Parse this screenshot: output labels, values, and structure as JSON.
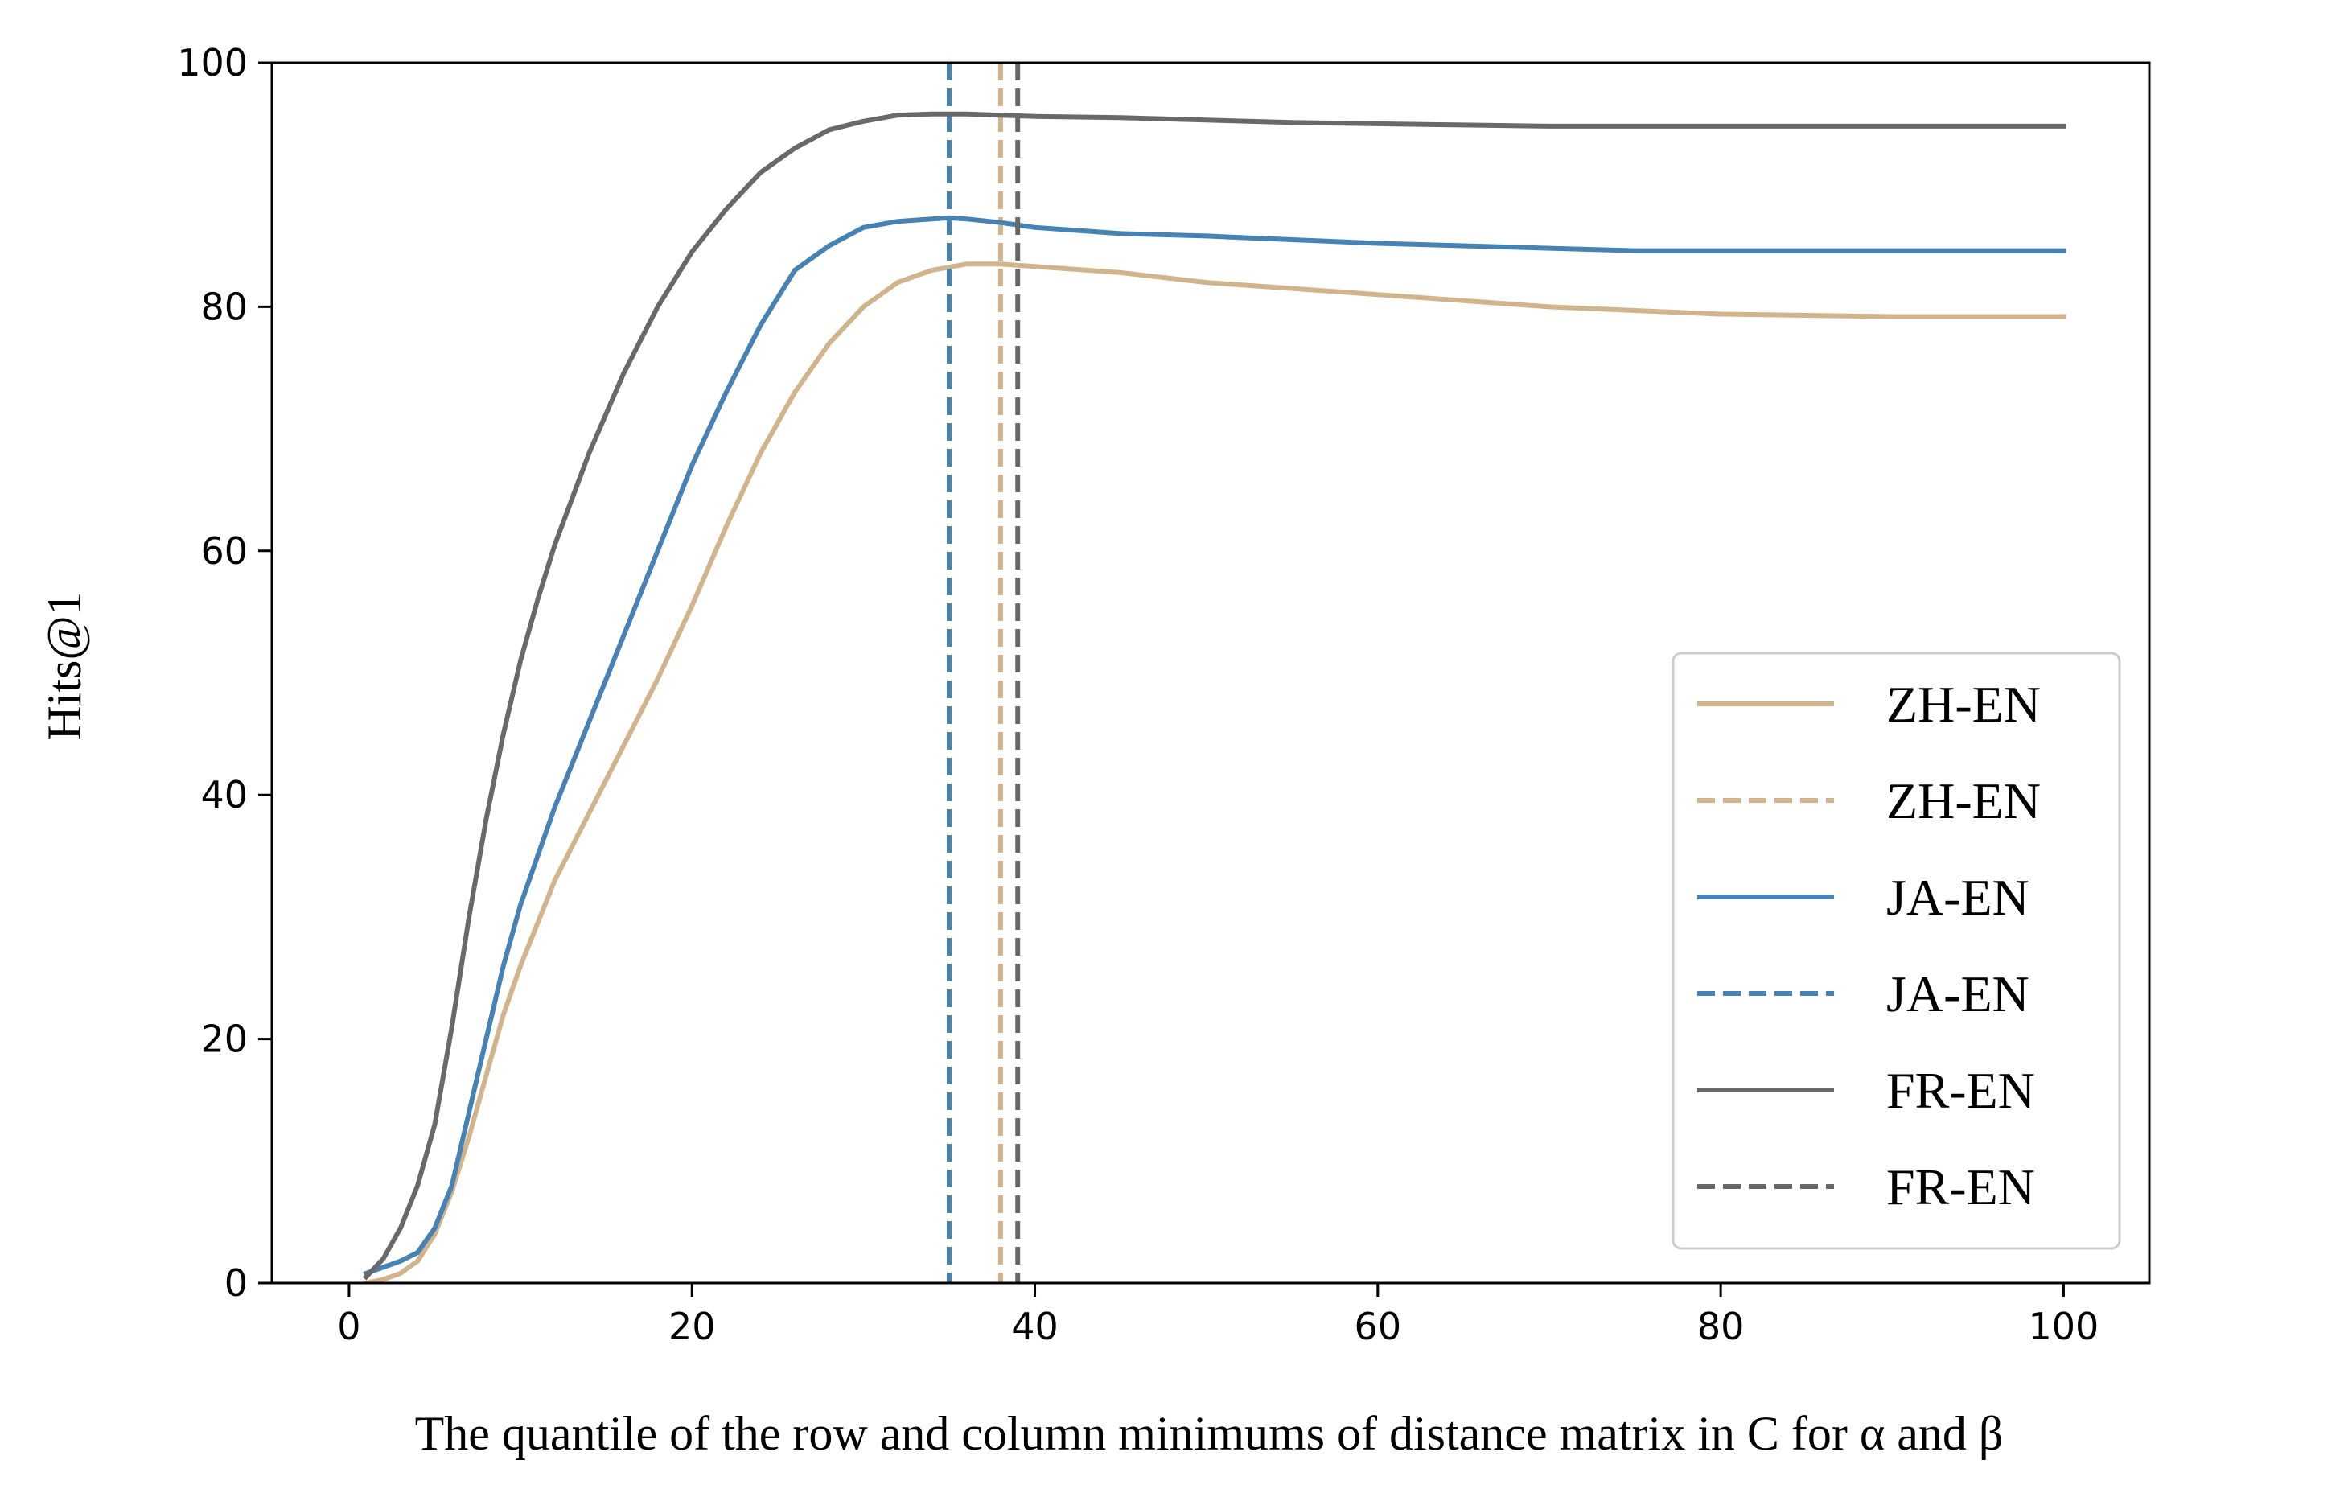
{
  "chart_data": {
    "type": "line",
    "title": "",
    "xlabel": "The quantile of the row and column minimums of distance matrix in C for α and β",
    "ylabel": "Hits@1",
    "xlim": [
      -4.5,
      105
    ],
    "ylim": [
      0,
      100
    ],
    "xticks": [
      0,
      20,
      40,
      60,
      80,
      100
    ],
    "yticks": [
      0,
      20,
      40,
      60,
      80,
      100
    ],
    "grid": false,
    "legend_position": "lower-right",
    "series": [
      {
        "name": "ZH-EN",
        "style": "solid",
        "color": "#D2B48C",
        "x": [
          1,
          2,
          3,
          4,
          5,
          6,
          7,
          8,
          9,
          10,
          12,
          14,
          16,
          18,
          20,
          22,
          24,
          26,
          28,
          29,
          30,
          32,
          34,
          36,
          38,
          40,
          45,
          50,
          55,
          60,
          65,
          70,
          75,
          80,
          85,
          90,
          95,
          100
        ],
        "y": [
          0,
          0.3,
          0.8,
          1.8,
          4.0,
          7.5,
          12.0,
          17.0,
          22.0,
          26.0,
          33.0,
          38.5,
          44.0,
          49.5,
          55.5,
          62.0,
          68.0,
          73.0,
          77.0,
          78.5,
          80.0,
          82.0,
          83.0,
          83.5,
          83.5,
          83.3,
          82.8,
          82.0,
          81.5,
          81.0,
          80.5,
          80.0,
          79.7,
          79.4,
          79.3,
          79.2,
          79.2,
          79.2
        ]
      },
      {
        "name": "ZH-EN",
        "style": "dashed",
        "color": "#D2B48C",
        "vline_x": 38
      },
      {
        "name": "JA-EN",
        "style": "solid",
        "color": "#4682B4",
        "x": [
          1,
          2,
          3,
          4,
          5,
          6,
          7,
          8,
          9,
          10,
          12,
          14,
          16,
          18,
          20,
          22,
          24,
          26,
          28,
          30,
          32,
          34,
          35,
          36,
          38,
          40,
          45,
          50,
          55,
          60,
          65,
          70,
          75,
          80,
          85,
          90,
          95,
          100
        ],
        "y": [
          0.8,
          1.3,
          1.8,
          2.5,
          4.5,
          8.0,
          14.0,
          20.0,
          26.0,
          31.0,
          39.0,
          46.0,
          53.0,
          60.0,
          67.0,
          73.0,
          78.5,
          83.0,
          85.0,
          86.5,
          87.0,
          87.2,
          87.3,
          87.2,
          86.9,
          86.5,
          86.0,
          85.8,
          85.5,
          85.2,
          85.0,
          84.8,
          84.6,
          84.6,
          84.6,
          84.6,
          84.6,
          84.6
        ]
      },
      {
        "name": "JA-EN",
        "style": "dashed",
        "color": "#4682B4",
        "vline_x": 35
      },
      {
        "name": "FR-EN",
        "style": "solid",
        "color": "#696969",
        "x": [
          1,
          2,
          3,
          4,
          5,
          6,
          7,
          8,
          9,
          10,
          11,
          12,
          14,
          16,
          18,
          20,
          22,
          24,
          26,
          28,
          30,
          32,
          34,
          36,
          38,
          40,
          45,
          50,
          55,
          60,
          65,
          70,
          75,
          80,
          85,
          90,
          95,
          100
        ],
        "y": [
          0.5,
          2.0,
          4.5,
          8.0,
          13.0,
          21.0,
          30.0,
          38.0,
          45.0,
          51.0,
          56.0,
          60.5,
          68.0,
          74.5,
          80.0,
          84.5,
          88.0,
          91.0,
          93.0,
          94.5,
          95.2,
          95.7,
          95.8,
          95.8,
          95.7,
          95.6,
          95.5,
          95.3,
          95.1,
          95.0,
          94.9,
          94.8,
          94.8,
          94.8,
          94.8,
          94.8,
          94.8,
          94.8
        ]
      },
      {
        "name": "FR-EN",
        "style": "dashed",
        "color": "#696969",
        "vline_x": 39
      }
    ]
  }
}
